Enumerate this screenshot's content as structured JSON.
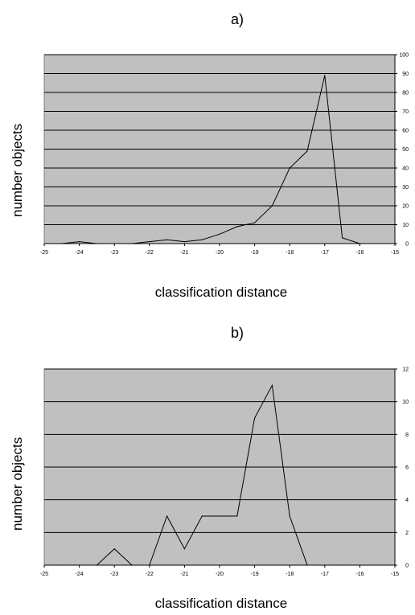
{
  "chart_data": [
    {
      "type": "line",
      "title": "a)",
      "xlabel": "classification distance",
      "ylabel": "number objects",
      "xlim": [
        -25,
        -15
      ],
      "ylim": [
        0,
        100
      ],
      "x_ticks": [
        -25,
        -24,
        -23,
        -22,
        -21,
        -20,
        -19,
        -18,
        -17,
        -16,
        -15
      ],
      "y_ticks": [
        0,
        10,
        20,
        30,
        40,
        50,
        60,
        70,
        80,
        90,
        100
      ],
      "grid": true,
      "background": "#c0c0c0",
      "line_color": "#000000",
      "x": [
        -24.5,
        -24,
        -23.5,
        -23,
        -22.5,
        -22,
        -21.5,
        -21,
        -20.5,
        -20,
        -19.5,
        -19,
        -18.5,
        -18,
        -17.5,
        -17,
        -16.5,
        -16
      ],
      "y": [
        0,
        1,
        0,
        0,
        0,
        1,
        2,
        1,
        2,
        5,
        9,
        11,
        20,
        40,
        49,
        89,
        3,
        0
      ]
    },
    {
      "type": "line",
      "title": "b)",
      "xlabel": "classification distance",
      "ylabel": "number objects",
      "xlim": [
        -25,
        -15
      ],
      "ylim": [
        0,
        12
      ],
      "x_ticks": [
        -25,
        -24,
        -23,
        -22,
        -21,
        -20,
        -19,
        -18,
        -17,
        -16,
        -15
      ],
      "y_ticks": [
        0,
        2,
        4,
        6,
        8,
        10,
        12
      ],
      "grid": true,
      "background": "#c0c0c0",
      "line_color": "#000000",
      "x": [
        -24.5,
        -24,
        -23.5,
        -23,
        -22.5,
        -22,
        -21.5,
        -21,
        -20.5,
        -20,
        -19.5,
        -19,
        -18.5,
        -18,
        -17.5,
        -17,
        -16.5,
        -16
      ],
      "y": [
        0,
        0,
        0,
        1,
        0,
        0,
        3,
        1,
        3,
        3,
        3,
        9,
        11,
        3,
        0,
        0,
        0,
        0
      ]
    }
  ]
}
